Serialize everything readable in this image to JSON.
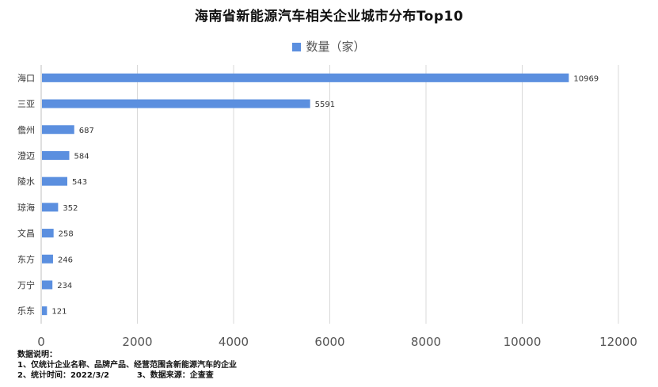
{
  "title": "海南省新能源汽车相关企业城市分布Top10",
  "chart_data": {
    "type": "bar",
    "orientation": "horizontal",
    "title": "海南省新能源汽车相关企业城市分布Top10",
    "categories": [
      "海口",
      "三亚",
      "儋州",
      "澄迈",
      "陵水",
      "琼海",
      "文昌",
      "东方",
      "万宁",
      "乐东"
    ],
    "series": [
      {
        "name": "数量（家）",
        "values": [
          10969,
          5591,
          687,
          584,
          543,
          352,
          258,
          246,
          234,
          121
        ]
      }
    ],
    "xlim": [
      0,
      12000
    ],
    "xticks": [
      0,
      2000,
      4000,
      6000,
      8000,
      10000,
      12000
    ],
    "grid": true,
    "legend_position": "top",
    "data_labels": true,
    "colors": {
      "bar": "#5b8fdf",
      "grid": "#d9d9d9",
      "axis": "#bfbfbf"
    }
  },
  "notes": {
    "heading": "数据说明：",
    "line1": "1、仅统计企业名称、品牌产品、经营范围含新能源汽车的企业",
    "line2": "2、统计时间：2022/3/2          3、数据来源：企查查"
  }
}
